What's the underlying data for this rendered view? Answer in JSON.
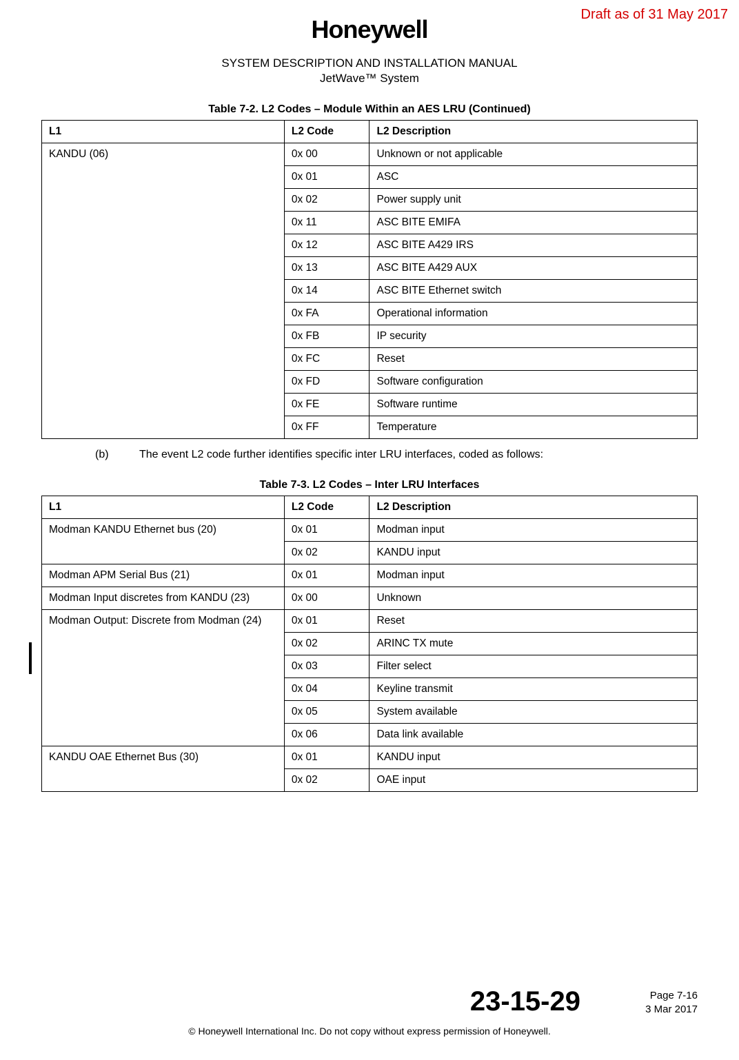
{
  "draft": "Draft as of 31 May 2017",
  "logo": "Honeywell",
  "subtitle1": "SYSTEM DESCRIPTION AND INSTALLATION MANUAL",
  "subtitle2": "JetWave™ System",
  "table1": {
    "caption": "Table 7-2.   L2 Codes – Module Within an AES LRU  (Continued)",
    "headers": {
      "l1": "L1",
      "code": "L2 Code",
      "desc": "L2 Description"
    },
    "l1": "KANDU (06)",
    "rows": [
      {
        "code": "0x 00",
        "desc": "Unknown or not applicable"
      },
      {
        "code": "0x 01",
        "desc": "ASC"
      },
      {
        "code": "0x 02",
        "desc": "Power supply unit"
      },
      {
        "code": "0x 11",
        "desc": "ASC BITE EMIFA"
      },
      {
        "code": "0x 12",
        "desc": "ASC BITE A429 IRS"
      },
      {
        "code": "0x 13",
        "desc": "ASC BITE A429 AUX"
      },
      {
        "code": "0x 14",
        "desc": "ASC BITE Ethernet switch"
      },
      {
        "code": "0x FA",
        "desc": "Operational information"
      },
      {
        "code": "0x FB",
        "desc": "IP security"
      },
      {
        "code": "0x FC",
        "desc": "Reset"
      },
      {
        "code": "0x FD",
        "desc": "Software configuration"
      },
      {
        "code": "0x FE",
        "desc": "Software runtime"
      },
      {
        "code": "0x FF",
        "desc": "Temperature"
      }
    ]
  },
  "note_lbl": "(b)",
  "note": "The event L2 code further identifies specific inter LRU interfaces, coded as follows:",
  "table2": {
    "caption": "Table 7-3.   L2 Codes – Inter LRU Interfaces",
    "headers": {
      "l1": "L1",
      "code": "L2 Code",
      "desc": "L2 Description"
    },
    "groups": [
      {
        "l1": "Modman KANDU Ethernet bus (20)",
        "rows": [
          {
            "code": "0x 01",
            "desc": "Modman input"
          },
          {
            "code": "0x 02",
            "desc": "KANDU input"
          }
        ]
      },
      {
        "l1": "Modman APM Serial Bus (21)",
        "rows": [
          {
            "code": "0x 01",
            "desc": "Modman input"
          }
        ]
      },
      {
        "l1": "Modman Input discretes from KANDU (23)",
        "rows": [
          {
            "code": "0x 00",
            "desc": "Unknown"
          }
        ]
      },
      {
        "l1": "Modman Output: Discrete from Modman (24)",
        "rows": [
          {
            "code": "0x 01",
            "desc": "Reset"
          },
          {
            "code": "0x 02",
            "desc": "ARINC TX mute"
          },
          {
            "code": "0x 03",
            "desc": "Filter select"
          },
          {
            "code": "0x 04",
            "desc": "Keyline transmit"
          },
          {
            "code": "0x 05",
            "desc": "System available"
          },
          {
            "code": "0x 06",
            "desc": "Data link available"
          }
        ]
      },
      {
        "l1": "KANDU OAE Ethernet Bus (30)",
        "rows": [
          {
            "code": "0x 01",
            "desc": "KANDU input"
          },
          {
            "code": "0x 02",
            "desc": "OAE input"
          }
        ]
      }
    ]
  },
  "docnum": "23-15-29",
  "page": "Page 7-16",
  "date": "3 Mar 2017",
  "copyright": "© Honeywell International Inc. Do not copy without express permission of Honeywell."
}
